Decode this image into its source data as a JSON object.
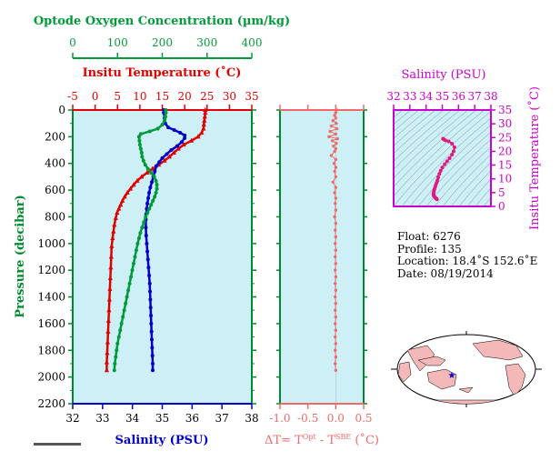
{
  "colors": {
    "panel_bg": "#cdeff6",
    "temp": "#e00000",
    "salinity": "#0000cc",
    "oxygen": "#009a3a",
    "pressure_axis": "#008a30",
    "delta": "#f06a6a",
    "salinity_ts": "#cc00cc",
    "ts_points": "#e01880"
  },
  "chart_data": [
    {
      "type": "line",
      "title": "",
      "y_axis": {
        "label": "Pressure (decibar)",
        "range": [
          0,
          2200
        ],
        "inverted": true,
        "ticks": [
          "0",
          "200",
          "400",
          "600",
          "800",
          "1000",
          "1200",
          "1400",
          "1600",
          "1800",
          "2000",
          "2200"
        ]
      },
      "x_axes": [
        {
          "id": "oxygen",
          "label": "Optode Oxygen Concentration (µm/kg)",
          "range": [
            0,
            400
          ],
          "ticks": [
            "0",
            "100",
            "200",
            "300",
            "400"
          ]
        },
        {
          "id": "temp",
          "label": "Insitu Temperature (˚C)",
          "range": [
            -5,
            35
          ],
          "ticks": [
            "-5",
            "0",
            "5",
            "10",
            "15",
            "20",
            "25",
            "30",
            "35"
          ]
        },
        {
          "id": "salinity",
          "label": "Salinity (PSU)",
          "range": [
            32,
            38
          ],
          "ticks": [
            "32",
            "33",
            "34",
            "35",
            "36",
            "37",
            "38"
          ]
        }
      ],
      "series": [
        {
          "axis": "temp",
          "points": [
            [
              24.6,
              0
            ],
            [
              24.6,
              20
            ],
            [
              24.5,
              50
            ],
            [
              24.4,
              80
            ],
            [
              24.3,
              110
            ],
            [
              24.2,
              140
            ],
            [
              23.8,
              170
            ],
            [
              23.0,
              200
            ],
            [
              21.5,
              230
            ],
            [
              19.8,
              260
            ],
            [
              18.6,
              290
            ],
            [
              17.6,
              320
            ],
            [
              16.6,
              350
            ],
            [
              15.5,
              380
            ],
            [
              14.2,
              410
            ],
            [
              12.8,
              440
            ],
            [
              11.6,
              470
            ],
            [
              10.4,
              500
            ],
            [
              9.4,
              530
            ],
            [
              8.6,
              560
            ],
            [
              7.9,
              590
            ],
            [
              7.2,
              620
            ],
            [
              6.6,
              650
            ],
            [
              6.1,
              680
            ],
            [
              5.7,
              710
            ],
            [
              5.3,
              740
            ],
            [
              4.9,
              770
            ],
            [
              4.6,
              810
            ],
            [
              4.3,
              860
            ],
            [
              4.1,
              910
            ],
            [
              3.9,
              960
            ],
            [
              3.7,
              1020
            ],
            [
              3.6,
              1100
            ],
            [
              3.5,
              1180
            ],
            [
              3.4,
              1260
            ],
            [
              3.3,
              1340
            ],
            [
              3.2,
              1420
            ],
            [
              3.1,
              1500
            ],
            [
              3.0,
              1580
            ],
            [
              2.9,
              1660
            ],
            [
              2.8,
              1740
            ],
            [
              2.7,
              1820
            ],
            [
              2.6,
              1890
            ],
            [
              2.6,
              1950
            ]
          ]
        },
        {
          "axis": "salinity",
          "points": [
            [
              35.05,
              0
            ],
            [
              35.05,
              20
            ],
            [
              35.08,
              60
            ],
            [
              35.1,
              100
            ],
            [
              35.2,
              130
            ],
            [
              35.4,
              150
            ],
            [
              35.6,
              170
            ],
            [
              35.75,
              190
            ],
            [
              35.75,
              210
            ],
            [
              35.65,
              240
            ],
            [
              35.5,
              270
            ],
            [
              35.3,
              300
            ],
            [
              35.15,
              330
            ],
            [
              35.0,
              360
            ],
            [
              34.9,
              390
            ],
            [
              34.8,
              420
            ],
            [
              34.75,
              460
            ],
            [
              34.7,
              500
            ],
            [
              34.65,
              540
            ],
            [
              34.6,
              580
            ],
            [
              34.56,
              620
            ],
            [
              34.53,
              660
            ],
            [
              34.5,
              700
            ],
            [
              34.48,
              740
            ],
            [
              34.46,
              780
            ],
            [
              34.45,
              820
            ],
            [
              34.45,
              880
            ],
            [
              34.46,
              940
            ],
            [
              34.48,
              1000
            ],
            [
              34.5,
              1060
            ],
            [
              34.52,
              1120
            ],
            [
              34.54,
              1180
            ],
            [
              34.56,
              1240
            ],
            [
              34.58,
              1300
            ],
            [
              34.59,
              1360
            ],
            [
              34.6,
              1420
            ],
            [
              34.61,
              1480
            ],
            [
              34.62,
              1540
            ],
            [
              34.63,
              1600
            ],
            [
              34.64,
              1660
            ],
            [
              34.65,
              1720
            ],
            [
              34.66,
              1780
            ],
            [
              34.67,
              1840
            ],
            [
              34.68,
              1900
            ],
            [
              34.68,
              1950
            ]
          ]
        },
        {
          "axis": "oxygen",
          "points": [
            [
              208,
              0
            ],
            [
              208,
              20
            ],
            [
              207,
              50
            ],
            [
              205,
              80
            ],
            [
              200,
              110
            ],
            [
              190,
              140
            ],
            [
              172,
              160
            ],
            [
              152,
              180
            ],
            [
              148,
              200
            ],
            [
              149,
              230
            ],
            [
              150,
              260
            ],
            [
              152,
              290
            ],
            [
              154,
              320
            ],
            [
              155,
              350
            ],
            [
              158,
              380
            ],
            [
              162,
              410
            ],
            [
              168,
              440
            ],
            [
              175,
              470
            ],
            [
              182,
              500
            ],
            [
              186,
              530
            ],
            [
              188,
              560
            ],
            [
              188,
              590
            ],
            [
              186,
              620
            ],
            [
              183,
              650
            ],
            [
              179,
              680
            ],
            [
              175,
              710
            ],
            [
              171,
              740
            ],
            [
              167,
              770
            ],
            [
              163,
              800
            ],
            [
              159,
              840
            ],
            [
              155,
              880
            ],
            [
              151,
              920
            ],
            [
              148,
              960
            ],
            [
              145,
              1000
            ],
            [
              142,
              1050
            ],
            [
              139,
              1100
            ],
            [
              136,
              1150
            ],
            [
              133,
              1200
            ],
            [
              130,
              1250
            ],
            [
              127,
              1300
            ],
            [
              124,
              1350
            ],
            [
              121,
              1400
            ],
            [
              118,
              1450
            ],
            [
              115,
              1500
            ],
            [
              112,
              1550
            ],
            [
              109,
              1600
            ],
            [
              106,
              1650
            ],
            [
              103,
              1700
            ],
            [
              100,
              1750
            ],
            [
              98,
              1800
            ],
            [
              96,
              1850
            ],
            [
              94,
              1900
            ],
            [
              93,
              1950
            ]
          ]
        }
      ]
    },
    {
      "type": "scatter",
      "title": "",
      "x_axis": {
        "label": "ΔT= T^Opt - T^SBE (˚C)",
        "label_main": "ΔT= T",
        "label_sup1": "Opt",
        "label_mid": " - T",
        "label_sup2": "SBE",
        "label_end": " (˚C)",
        "range": [
          -1.0,
          0.5
        ],
        "ticks": [
          "-1.0",
          "-0.5",
          "0.0",
          "0.5"
        ]
      },
      "y_axis": {
        "range": [
          0,
          2200
        ],
        "inverted": true
      },
      "points": [
        [
          0.02,
          0
        ],
        [
          0.0,
          20
        ],
        [
          -0.02,
          40
        ],
        [
          0.0,
          60
        ],
        [
          -0.05,
          80
        ],
        [
          0.01,
          100
        ],
        [
          -0.08,
          120
        ],
        [
          0.02,
          140
        ],
        [
          -0.1,
          160
        ],
        [
          0.0,
          180
        ],
        [
          -0.12,
          200
        ],
        [
          0.03,
          215
        ],
        [
          -0.06,
          230
        ],
        [
          0.01,
          250
        ],
        [
          -0.04,
          270
        ],
        [
          0.0,
          290
        ],
        [
          -0.02,
          310
        ],
        [
          -0.08,
          340
        ],
        [
          0.0,
          370
        ],
        [
          -0.03,
          400
        ],
        [
          0.0,
          430
        ],
        [
          -0.02,
          460
        ],
        [
          0.0,
          500
        ],
        [
          -0.05,
          540
        ],
        [
          0.0,
          580
        ],
        [
          -0.02,
          620
        ],
        [
          0.0,
          660
        ],
        [
          -0.01,
          700
        ],
        [
          0.0,
          750
        ],
        [
          -0.02,
          800
        ],
        [
          0.0,
          850
        ],
        [
          -0.01,
          900
        ],
        [
          0.0,
          950
        ],
        [
          -0.01,
          1000
        ],
        [
          0.0,
          1050
        ],
        [
          -0.01,
          1100
        ],
        [
          0.0,
          1150
        ],
        [
          -0.01,
          1200
        ],
        [
          0.0,
          1250
        ],
        [
          -0.01,
          1300
        ],
        [
          0.0,
          1350
        ],
        [
          -0.01,
          1400
        ],
        [
          0.0,
          1450
        ],
        [
          -0.01,
          1500
        ],
        [
          0.0,
          1550
        ],
        [
          -0.01,
          1600
        ],
        [
          0.0,
          1650
        ],
        [
          -0.01,
          1700
        ],
        [
          0.0,
          1750
        ],
        [
          -0.01,
          1800
        ],
        [
          0.0,
          1850
        ],
        [
          -0.01,
          1900
        ],
        [
          0.0,
          1950
        ]
      ]
    },
    {
      "type": "scatter",
      "title": "",
      "x_axis": {
        "label": "Salinity (PSU)",
        "range": [
          32,
          38
        ],
        "ticks": [
          "32",
          "33",
          "34",
          "35",
          "36",
          "37",
          "38"
        ]
      },
      "y_axis": {
        "label": "Insitu Temperature (˚C)",
        "range": [
          0,
          35
        ],
        "ticks": [
          "0",
          "5",
          "10",
          "15",
          "20",
          "25",
          "30",
          "35"
        ]
      },
      "points": [
        [
          35.05,
          24.6
        ],
        [
          35.1,
          24.3
        ],
        [
          35.2,
          24.0
        ],
        [
          35.4,
          23.6
        ],
        [
          35.6,
          22.8
        ],
        [
          35.75,
          21.5
        ],
        [
          35.7,
          20.0
        ],
        [
          35.6,
          18.8
        ],
        [
          35.45,
          17.5
        ],
        [
          35.3,
          16.4
        ],
        [
          35.15,
          15.3
        ],
        [
          35.0,
          14.1
        ],
        [
          34.9,
          12.9
        ],
        [
          34.82,
          11.8
        ],
        [
          34.75,
          10.6
        ],
        [
          34.7,
          9.5
        ],
        [
          34.65,
          8.6
        ],
        [
          34.6,
          7.8
        ],
        [
          34.56,
          7.0
        ],
        [
          34.52,
          6.3
        ],
        [
          34.49,
          5.7
        ],
        [
          34.47,
          5.1
        ],
        [
          34.46,
          4.6
        ],
        [
          34.46,
          4.2
        ],
        [
          34.48,
          3.8
        ],
        [
          34.52,
          3.5
        ],
        [
          34.56,
          3.2
        ],
        [
          34.6,
          3.0
        ],
        [
          34.64,
          2.8
        ],
        [
          34.67,
          2.6
        ]
      ]
    }
  ],
  "info": {
    "float": "Float:  6276",
    "profile": "Profile:  135",
    "location": "Location:  18.4˚S  152.6˚E",
    "date": "Date:  08/19/2014"
  },
  "map": {
    "marker": "float-location-marker"
  }
}
